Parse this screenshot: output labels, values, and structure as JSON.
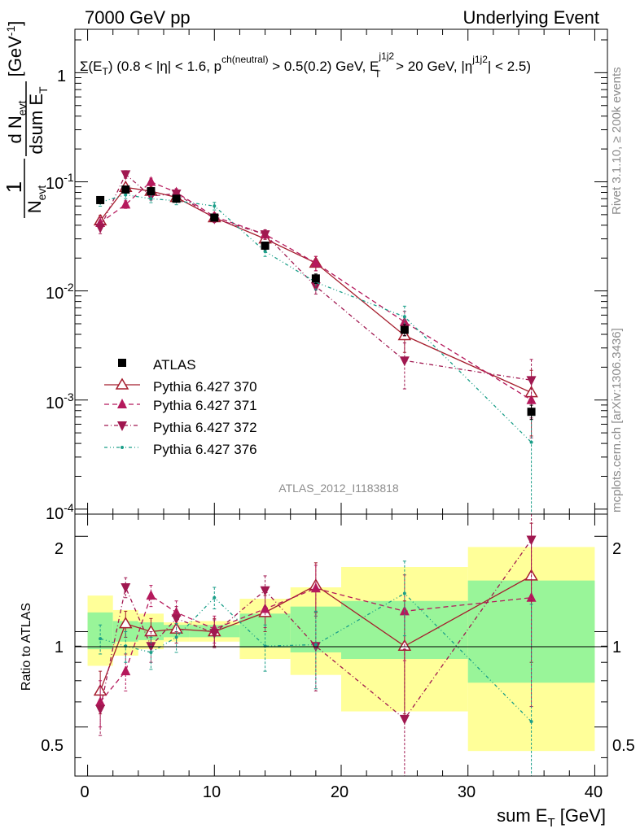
{
  "header": {
    "left": "7000 GeV pp",
    "right": "Underlying Event"
  },
  "side": {
    "top": "Rivet 3.1.10, ≥ 200k events",
    "bottom": "mcplots.cern.ch [arXiv:1306.3436]"
  },
  "chart_data": {
    "type": "line",
    "title": "Σ(E_T) (0.8 < |η| < 1.6, p_T^ch(neutral) > 0.5(0.2) GeV, E_T^j1j2 > 20 GeV, |η^j1j2| < 2.5)",
    "title_parts": {
      "a": "Σ(E",
      "a_sub": "T",
      "b": ") (0.8 < |η| < 1.6, p",
      "b_sup": "ch(neutral)",
      "c": " > 0.5(0.2) GeV, E",
      "c_sup": "j1j2",
      "c_sub": "T",
      "d": " > 20 GeV, |η",
      "d_sup": "j1j2",
      "e": "| < 2.5)"
    },
    "analysis_label": "ATLAS_2012_I1183818",
    "xlabel": "sum E_T [GeV]",
    "xlabel_parts": {
      "main": "sum E",
      "sub": "T",
      "unit": " [GeV]"
    },
    "ylabel": "1/N_evt dN_evt/dsum E_T [GeV^-1]",
    "ylabel_parts": {
      "one": "1",
      "n": "N",
      "n_sub": "evt",
      "dn": "d N",
      "dn_sub": "evt",
      "dsum": "dsum E",
      "dsum_sub": "T",
      "unit": "[GeV",
      "unit_sup": "-1",
      "unit_close": "]"
    },
    "ratio_ylabel": "Ratio to ATLAS",
    "xlim": [
      -1,
      41
    ],
    "ylim_main": [
      9e-05,
      2.5
    ],
    "ylim_ratio": [
      0.35,
      2.35
    ],
    "x_ticks": [
      0,
      10,
      20,
      30,
      40
    ],
    "main_y_ticks": [
      {
        "base": "10",
        "exp": "-4",
        "v": 0.0001
      },
      {
        "base": "10",
        "exp": "-3",
        "v": 0.001
      },
      {
        "base": "10",
        "exp": "-2",
        "v": 0.01
      },
      {
        "base": "10",
        "exp": "-1",
        "v": 0.1
      },
      {
        "base": "1",
        "exp": "",
        "v": 1
      }
    ],
    "ratio_y_ticks": [
      "0.5",
      "1",
      "2"
    ],
    "bin_edges": [
      0,
      2,
      4,
      6,
      8,
      12,
      16,
      20,
      30,
      40
    ],
    "x": [
      1,
      3,
      5,
      7,
      10,
      14,
      18,
      25,
      35
    ],
    "band_inner": [
      [
        0.88,
        1.15
      ],
      [
        0.93,
        1.08
      ],
      [
        0.94,
        1.07
      ],
      [
        0.96,
        1.05
      ],
      [
        0.96,
        1.05
      ],
      [
        0.89,
        1.14
      ],
      [
        0.86,
        1.2
      ],
      [
        0.82,
        1.25
      ],
      [
        0.69,
        1.45
      ]
    ],
    "band_outer": [
      [
        0.78,
        1.3
      ],
      [
        0.84,
        1.17
      ],
      [
        0.88,
        1.14
      ],
      [
        0.93,
        1.07
      ],
      [
        0.93,
        1.08
      ],
      [
        0.82,
        1.27
      ],
      [
        0.73,
        1.38
      ],
      [
        0.56,
        1.6
      ],
      [
        0.42,
        1.85
      ]
    ],
    "series": [
      {
        "name": "ATLAS",
        "color": "#000000",
        "marker": "square",
        "dash": "none",
        "values": [
          0.068,
          0.085,
          0.082,
          0.07,
          0.047,
          0.026,
          0.013,
          0.0044,
          0.00078
        ],
        "err": [
          0.06,
          0.06,
          0.06,
          0.06,
          0.06,
          0.08,
          0.1,
          0.12,
          0.15
        ],
        "ratio": [
          1,
          1,
          1,
          1,
          1,
          1,
          1,
          1,
          1
        ],
        "ratio_err": [
          0,
          0,
          0,
          0,
          0,
          0,
          0,
          0,
          0
        ]
      },
      {
        "name": "Pythia 6.427 370",
        "color": "#a51d2d",
        "marker": "triangle-open",
        "dash": "none",
        "values": [
          0.044,
          0.089,
          0.082,
          0.072,
          0.047,
          0.03,
          0.018,
          0.0039,
          0.00117
        ],
        "err": [
          0.12,
          0.08,
          0.08,
          0.08,
          0.08,
          0.1,
          0.15,
          0.3,
          0.6
        ],
        "ratio": [
          0.65,
          1.06,
          1.0,
          1.02,
          1.0,
          1.15,
          1.4,
          0.9,
          1.5
        ],
        "ratio_err": [
          0.1,
          0.1,
          0.1,
          0.1,
          0.1,
          0.15,
          0.25,
          0.35,
          0.7
        ]
      },
      {
        "name": "Pythia 6.427 371",
        "color": "#b5195c",
        "marker": "triangle-up",
        "dash": "6,4",
        "values": [
          0.042,
          0.062,
          0.1,
          0.08,
          0.048,
          0.033,
          0.018,
          0.0052,
          0.001
        ],
        "err": [
          0.12,
          0.08,
          0.08,
          0.08,
          0.08,
          0.1,
          0.15,
          0.25,
          0.55
        ],
        "ratio": [
          0.6,
          0.75,
          1.3,
          1.15,
          1.02,
          1.18,
          1.37,
          1.16,
          1.28
        ],
        "ratio_err": [
          0.1,
          0.1,
          0.1,
          0.1,
          0.1,
          0.15,
          0.25,
          0.35,
          0.7
        ]
      },
      {
        "name": "Pythia 6.427 372",
        "color": "#a01850",
        "marker": "triangle-down",
        "dash": "5,3,1,3",
        "values": [
          0.038,
          0.117,
          0.074,
          0.078,
          0.046,
          0.033,
          0.011,
          0.0023,
          0.00152
        ],
        "err": [
          0.12,
          0.08,
          0.08,
          0.08,
          0.08,
          0.1,
          0.15,
          0.45,
          0.55
        ],
        "ratio": [
          0.57,
          1.38,
          0.9,
          1.1,
          0.99,
          1.35,
          0.9,
          0.53,
          1.95
        ],
        "ratio_err": [
          0.1,
          0.1,
          0.1,
          0.1,
          0.1,
          0.15,
          0.25,
          0.35,
          0.7
        ]
      },
      {
        "name": "Pythia 6.427 376",
        "color": "#1a9e88",
        "marker": "dot",
        "dash": "4,3,1,3,1,3",
        "values": [
          0.065,
          0.076,
          0.07,
          0.067,
          0.06,
          0.023,
          0.012,
          0.0058,
          0.00041
        ],
        "err": [
          0.08,
          0.08,
          0.08,
          0.08,
          0.08,
          0.1,
          0.15,
          0.25,
          0.9
        ],
        "ratio": [
          0.95,
          0.9,
          0.86,
          0.96,
          1.28,
          0.9,
          0.91,
          1.32,
          0.52
        ],
        "ratio_err": [
          0.1,
          0.1,
          0.1,
          0.1,
          0.1,
          0.15,
          0.25,
          0.35,
          0.7
        ]
      }
    ],
    "legend_position": "lower-left"
  }
}
